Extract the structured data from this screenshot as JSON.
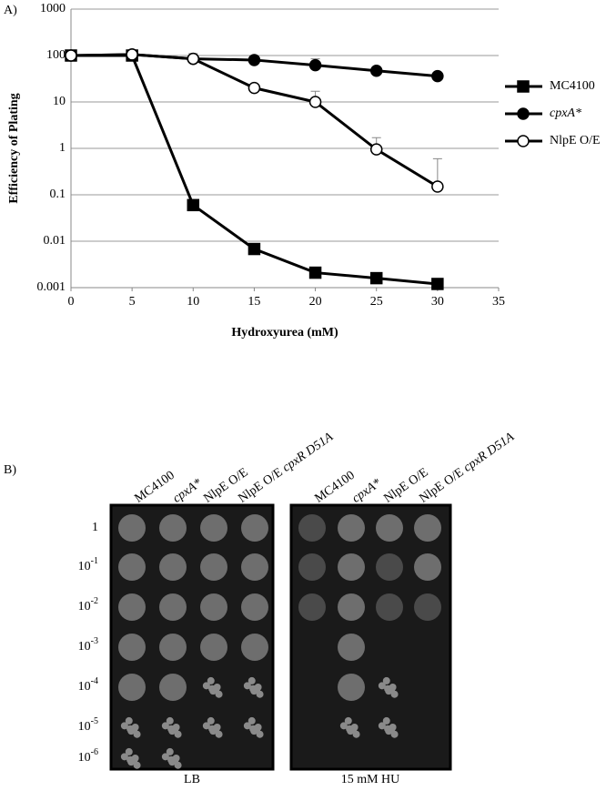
{
  "chart_data": {
    "type": "line",
    "panel_label": "A)",
    "x_label": "Hydroxyurea (mM)",
    "y_label": "Efficiency of Plating",
    "x": [
      0,
      5,
      10,
      15,
      20,
      25,
      30
    ],
    "series": [
      {
        "name": "MC4100",
        "italic": false,
        "color": "#000000",
        "marker": "square",
        "filled": true,
        "values": [
          100,
          100,
          0.06,
          0.0068,
          0.0021,
          0.0016,
          0.0012
        ],
        "errors": [
          null,
          null,
          null,
          null,
          null,
          null,
          null
        ]
      },
      {
        "name": "cpxA*",
        "italic": true,
        "color": "#000000",
        "marker": "circle",
        "filled": true,
        "values": [
          100,
          105,
          85,
          80,
          62,
          47,
          36
        ],
        "errors": [
          null,
          null,
          null,
          20,
          23,
          null,
          null
        ]
      },
      {
        "name": "NlpE O/E",
        "italic": false,
        "color": "#000000",
        "marker": "circle",
        "filled": false,
        "values": [
          100,
          105,
          85,
          20,
          10,
          0.95,
          0.15
        ],
        "errors": [
          null,
          null,
          25,
          null,
          7,
          0.75,
          0.45
        ]
      }
    ],
    "xlim": [
      0,
      35
    ],
    "xticks": [
      0,
      5,
      10,
      15,
      20,
      25,
      30,
      35
    ],
    "ylim": [
      0.001,
      1000
    ],
    "yticks": [
      0.001,
      0.01,
      0.1,
      1,
      10,
      100,
      1000
    ],
    "log_y": true,
    "grid": true,
    "legend": "right"
  },
  "panel_b": {
    "panel_label": "B)",
    "strains": [
      {
        "name": "MC4100",
        "italic": false
      },
      {
        "name": "cpxA*",
        "italic": true
      },
      {
        "name": "NlpE O/E",
        "italic": false
      },
      {
        "name": "NlpE O/E",
        "mutation": "cpxR D51A",
        "italic": false
      }
    ],
    "dilutions": [
      {
        "base": "1"
      },
      {
        "base": "10",
        "sup": "-1"
      },
      {
        "base": "10",
        "sup": "-2"
      },
      {
        "base": "10",
        "sup": "-3"
      },
      {
        "base": "10",
        "sup": "-4"
      },
      {
        "base": "10",
        "sup": "-5"
      },
      {
        "base": "10",
        "sup": "-6"
      }
    ],
    "plates": [
      "LB",
      "15 mM HU"
    ]
  }
}
